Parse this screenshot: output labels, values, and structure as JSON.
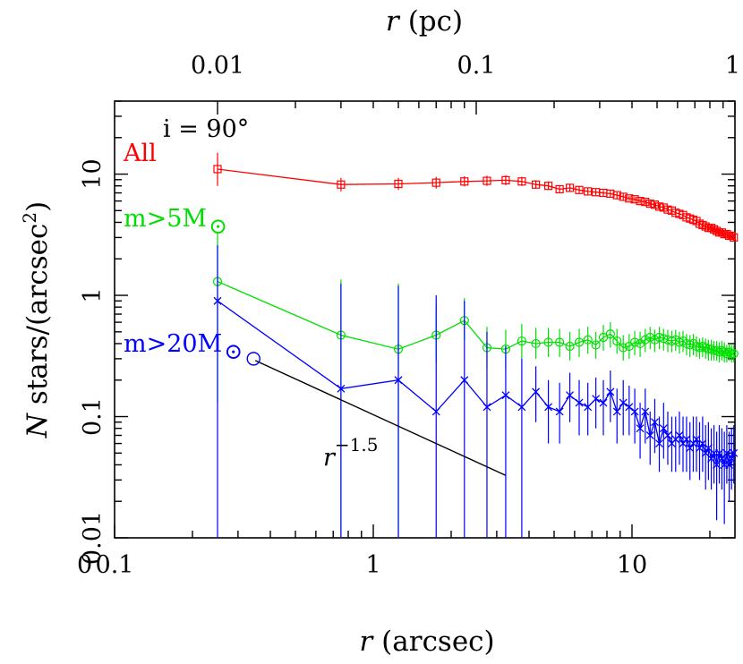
{
  "chart_data": {
    "type": "scatter",
    "x_scale": "log",
    "y_scale": "log",
    "xlim": [
      0.1,
      25
    ],
    "ylim": [
      0.01,
      40
    ],
    "xlabel_main": "r",
    "xlabel_unit": "(arcsec)",
    "x2label_main": "r",
    "x2label_unit": "(pc)",
    "ylabel_main": "N",
    "ylabel_unit": "stars/(arcsec",
    "ylabel_exp": "2",
    "ylabel_close": ")",
    "x_ticks": [
      {
        "value": 0.1,
        "label": "0.1"
      },
      {
        "value": 1,
        "label": "1"
      },
      {
        "value": 10,
        "label": "10"
      }
    ],
    "x2_ticks": [
      {
        "value": 0.25,
        "label": "0.01"
      },
      {
        "value": 2.5,
        "label": "0.1"
      },
      {
        "value": 25,
        "label": "1"
      }
    ],
    "y_ticks": [
      {
        "value": 0.01,
        "label": "0.01"
      },
      {
        "value": 0.1,
        "label": "0.1"
      },
      {
        "value": 1,
        "label": "1"
      },
      {
        "value": 10,
        "label": "10"
      }
    ],
    "corner_label": "0",
    "inclination_label": "i = 90°",
    "series": [
      {
        "name": "All",
        "label_main": "All",
        "label_sub": "",
        "color": "#ff0000",
        "marker": "square",
        "x": [
          0.25,
          0.75,
          1.25,
          1.75,
          2.25,
          2.75,
          3.25,
          3.75,
          4.25,
          4.75,
          5.25,
          5.75,
          6.25,
          6.75,
          7.25,
          7.75,
          8.25,
          8.75,
          9.25,
          9.75,
          10.25,
          10.75,
          11.25,
          11.75,
          12.25,
          12.75,
          13.25,
          13.75,
          14.25,
          14.75,
          15.25,
          15.75,
          16.25,
          16.75,
          17.25,
          17.75,
          18.25,
          18.75,
          19.25,
          19.75,
          20.25,
          20.75,
          21.25,
          21.75,
          22.25,
          22.75,
          23.25,
          23.75,
          24.25,
          24.75
        ],
        "y": [
          11,
          8.2,
          8.3,
          8.5,
          8.7,
          8.8,
          8.9,
          8.7,
          8.2,
          8.0,
          7.5,
          7.7,
          7.4,
          7.2,
          7.1,
          7.0,
          6.9,
          6.7,
          6.5,
          6.3,
          6.2,
          6.0,
          5.9,
          5.7,
          5.6,
          5.4,
          5.3,
          5.1,
          5.0,
          4.8,
          4.7,
          4.6,
          4.4,
          4.3,
          4.2,
          4.1,
          3.9,
          3.8,
          3.7,
          3.6,
          3.6,
          3.5,
          3.4,
          3.3,
          3.3,
          3.2,
          3.2,
          3.1,
          3.1,
          3.0
        ],
        "err_lo": [
          8.0,
          7.2,
          7.4,
          7.6,
          7.9,
          8.0,
          8.1,
          8.0,
          7.6,
          7.4,
          7.0,
          7.2,
          6.9,
          6.8,
          6.7,
          6.6,
          6.5,
          6.3,
          6.1,
          6.0,
          5.9,
          5.7,
          5.6,
          5.4,
          5.3,
          5.1,
          5.0,
          4.9,
          4.8,
          4.6,
          4.5,
          4.4,
          4.2,
          4.1,
          4.0,
          3.9,
          3.7,
          3.6,
          3.5,
          3.4,
          3.4,
          3.3,
          3.2,
          3.1,
          3.1,
          3.0,
          3.0,
          2.9,
          2.9,
          2.8
        ],
        "err_hi": [
          15,
          9.3,
          9.3,
          9.5,
          9.6,
          9.7,
          9.8,
          9.5,
          8.9,
          8.7,
          8.0,
          8.2,
          7.9,
          7.7,
          7.5,
          7.4,
          7.3,
          7.1,
          6.9,
          6.6,
          6.5,
          6.3,
          6.2,
          6.0,
          5.9,
          5.7,
          5.6,
          5.3,
          5.2,
          5.0,
          4.9,
          4.8,
          4.6,
          4.5,
          4.4,
          4.3,
          4.1,
          4.0,
          3.9,
          3.8,
          3.8,
          3.7,
          3.6,
          3.5,
          3.5,
          3.4,
          3.4,
          3.3,
          3.3,
          3.2
        ]
      },
      {
        "name": "m>5M⊙",
        "label_main": "m>5M",
        "label_sub": "⊙",
        "color": "#00e000",
        "marker": "circle",
        "x": [
          0.25,
          0.75,
          1.25,
          1.75,
          2.25,
          2.75,
          3.25,
          3.75,
          4.25,
          4.75,
          5.25,
          5.75,
          6.25,
          6.75,
          7.25,
          7.75,
          8.25,
          8.75,
          9.25,
          9.75,
          10.25,
          10.75,
          11.25,
          11.75,
          12.25,
          12.75,
          13.25,
          13.75,
          14.25,
          14.75,
          15.25,
          15.75,
          16.25,
          16.75,
          17.25,
          17.75,
          18.25,
          18.75,
          19.25,
          19.75,
          20.25,
          20.75,
          21.25,
          21.75,
          22.25,
          22.75,
          23.25,
          23.75,
          24.25,
          24.75
        ],
        "y": [
          1.3,
          0.47,
          0.36,
          0.47,
          0.62,
          0.37,
          0.36,
          0.42,
          0.4,
          0.41,
          0.41,
          0.38,
          0.41,
          0.43,
          0.39,
          0.45,
          0.48,
          0.42,
          0.37,
          0.38,
          0.41,
          0.4,
          0.43,
          0.45,
          0.43,
          0.45,
          0.44,
          0.43,
          0.42,
          0.43,
          0.41,
          0.42,
          0.4,
          0.39,
          0.4,
          0.38,
          0.37,
          0.38,
          0.37,
          0.36,
          0.36,
          0.35,
          0.35,
          0.34,
          0.35,
          0.34,
          0.33,
          0.34,
          0.33,
          0.33
        ],
        "err_lo": [
          0.13,
          0.01,
          0.01,
          0.28,
          0.43,
          0.25,
          0.25,
          0.3,
          0.3,
          0.31,
          0.31,
          0.29,
          0.31,
          0.33,
          0.3,
          0.35,
          0.37,
          0.33,
          0.29,
          0.3,
          0.32,
          0.31,
          0.34,
          0.36,
          0.34,
          0.36,
          0.35,
          0.34,
          0.34,
          0.35,
          0.33,
          0.34,
          0.32,
          0.31,
          0.32,
          0.31,
          0.3,
          0.31,
          0.3,
          0.29,
          0.29,
          0.29,
          0.29,
          0.28,
          0.29,
          0.28,
          0.28,
          0.29,
          0.28,
          0.28
        ],
        "err_hi": [
          3.3,
          1.35,
          1.25,
          0.85,
          0.95,
          0.55,
          0.52,
          0.58,
          0.54,
          0.54,
          0.53,
          0.5,
          0.53,
          0.55,
          0.5,
          0.57,
          0.6,
          0.53,
          0.47,
          0.48,
          0.51,
          0.5,
          0.53,
          0.55,
          0.52,
          0.55,
          0.53,
          0.52,
          0.51,
          0.52,
          0.5,
          0.51,
          0.48,
          0.47,
          0.48,
          0.46,
          0.44,
          0.45,
          0.44,
          0.43,
          0.43,
          0.42,
          0.42,
          0.41,
          0.42,
          0.41,
          0.39,
          0.4,
          0.39,
          0.39
        ]
      },
      {
        "name": "m>20M⊙",
        "label_main": "m>20M",
        "label_sub": "⊙",
        "color": "#0000ff",
        "marker": "cross",
        "x": [
          0.25,
          0.75,
          1.25,
          1.75,
          2.25,
          2.75,
          3.25,
          3.75,
          4.25,
          4.75,
          5.25,
          5.75,
          6.25,
          6.75,
          7.25,
          7.75,
          8.25,
          8.75,
          9.25,
          9.75,
          10.25,
          10.75,
          11.25,
          11.75,
          12.25,
          12.75,
          13.25,
          13.75,
          14.25,
          14.75,
          15.25,
          15.75,
          16.25,
          16.75,
          17.25,
          17.75,
          18.25,
          18.75,
          19.25,
          19.75,
          20.25,
          20.75,
          21.25,
          21.75,
          22.25,
          22.75,
          23.25,
          23.75,
          24.25,
          24.75
        ],
        "y": [
          0.9,
          0.17,
          0.2,
          0.11,
          0.2,
          0.12,
          0.15,
          0.12,
          0.16,
          0.12,
          0.11,
          0.15,
          0.13,
          0.12,
          0.14,
          0.13,
          0.16,
          0.11,
          0.13,
          0.12,
          0.11,
          0.08,
          0.11,
          0.07,
          0.09,
          0.06,
          0.08,
          0.07,
          0.06,
          0.065,
          0.07,
          0.06,
          0.065,
          0.055,
          0.06,
          0.065,
          0.055,
          0.06,
          0.05,
          0.055,
          0.045,
          0.05,
          0.04,
          0.05,
          0.045,
          0.04,
          0.05,
          0.04,
          0.045,
          0.05
        ],
        "err_lo": [
          0.01,
          0.01,
          0.01,
          0.01,
          0.01,
          0.01,
          0.01,
          0.01,
          0.09,
          0.06,
          0.06,
          0.09,
          0.07,
          0.07,
          0.08,
          0.07,
          0.09,
          0.06,
          0.07,
          0.07,
          0.06,
          0.045,
          0.06,
          0.04,
          0.05,
          0.035,
          0.045,
          0.04,
          0.035,
          0.035,
          0.04,
          0.035,
          0.035,
          0.03,
          0.035,
          0.035,
          0.03,
          0.035,
          0.025,
          0.03,
          0.025,
          0.028,
          0.014,
          0.028,
          0.025,
          0.013,
          0.028,
          0.02,
          0.025,
          0.028
        ],
        "err_hi": [
          2.6,
          1.25,
          1.2,
          1.0,
          0.9,
          0.5,
          0.38,
          0.3,
          0.26,
          0.2,
          0.19,
          0.23,
          0.2,
          0.19,
          0.21,
          0.2,
          0.24,
          0.17,
          0.2,
          0.18,
          0.17,
          0.13,
          0.17,
          0.11,
          0.14,
          0.1,
          0.13,
          0.11,
          0.1,
          0.1,
          0.11,
          0.1,
          0.1,
          0.09,
          0.1,
          0.1,
          0.09,
          0.1,
          0.085,
          0.09,
          0.08,
          0.085,
          0.075,
          0.085,
          0.08,
          0.075,
          0.085,
          0.075,
          0.08,
          0.085
        ]
      }
    ],
    "reference_line": {
      "label_base": "r",
      "label_exp": "−1.5",
      "color": "#000000",
      "x": [
        0.35,
        3.25
      ],
      "y": [
        0.29,
        0.0327
      ]
    }
  }
}
